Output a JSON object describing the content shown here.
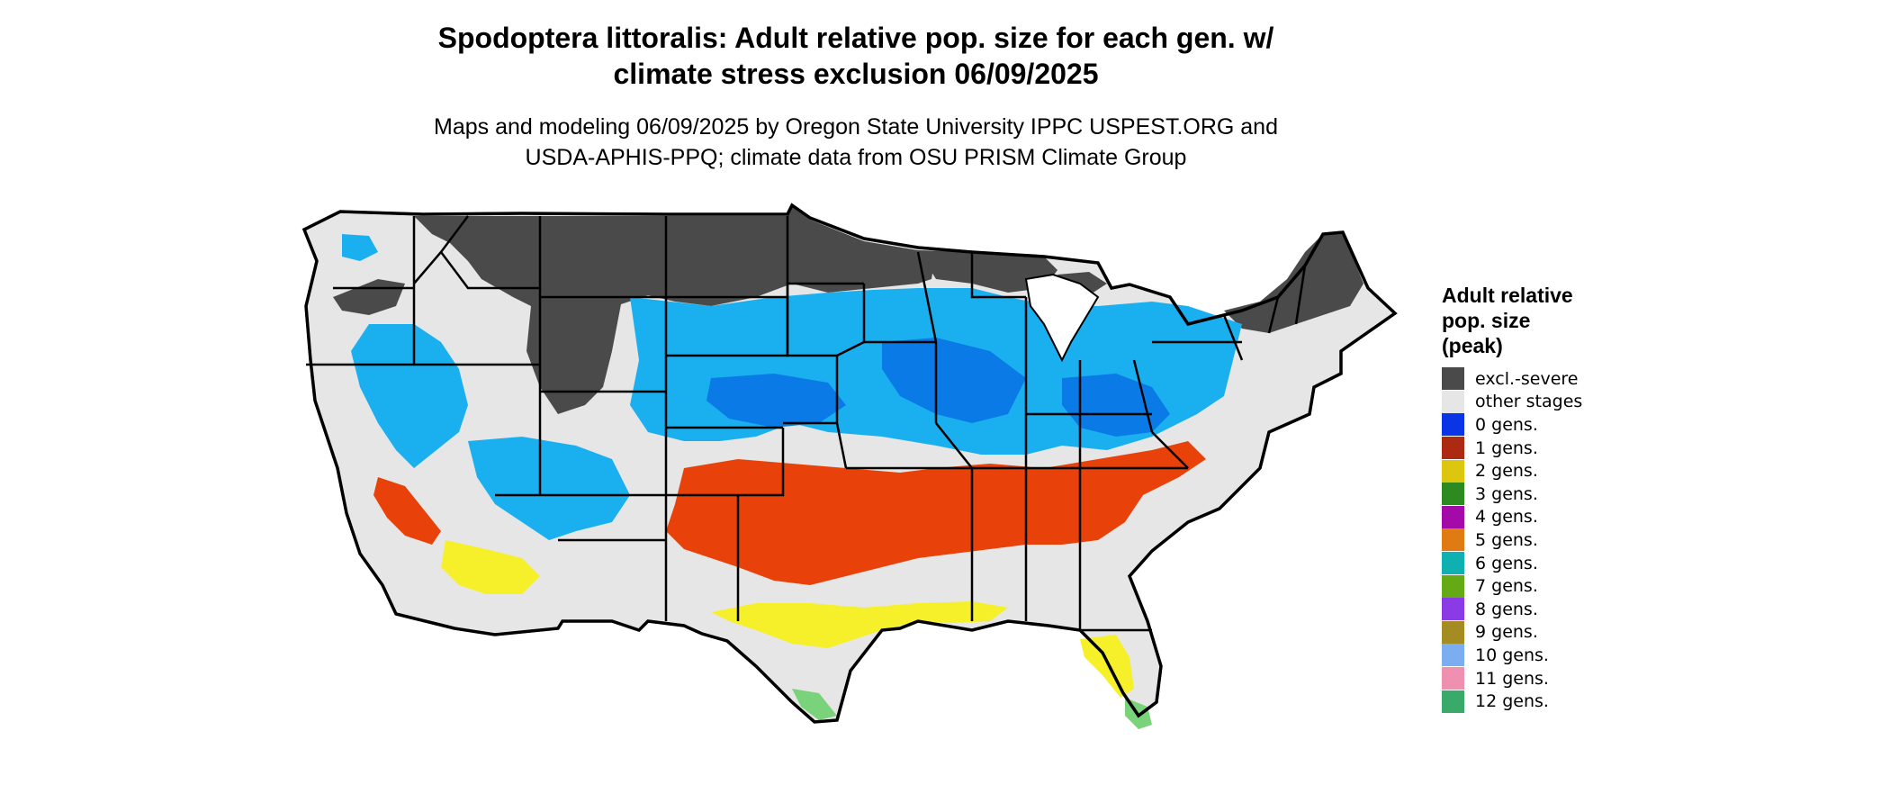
{
  "title": {
    "line1": "Spodoptera littoralis: Adult relative pop. size for each gen. w/",
    "line2": "climate stress exclusion 06/09/2025"
  },
  "subtitle": {
    "line1": "Maps and modeling 06/09/2025 by Oregon State University IPPC USPEST.ORG and",
    "line2": "USDA-APHIS-PPQ; climate data from OSU PRISM Climate Group"
  },
  "legend": {
    "title_lines": [
      "Adult relative",
      "pop. size",
      "(peak)"
    ],
    "items": [
      {
        "label": "excl.-severe",
        "color": "#4a4a4a"
      },
      {
        "label": "other stages",
        "color": "#e6e6e6"
      },
      {
        "label": "0 gens.",
        "color": "#0a35e6"
      },
      {
        "label": "1 gens.",
        "color": "#ad2a12"
      },
      {
        "label": "2 gens.",
        "color": "#dcc70e"
      },
      {
        "label": "3 gens.",
        "color": "#2d8a21"
      },
      {
        "label": "4 gens.",
        "color": "#a40aa8"
      },
      {
        "label": "5 gens.",
        "color": "#e07a12"
      },
      {
        "label": "6 gens.",
        "color": "#0fb0b0"
      },
      {
        "label": "7 gens.",
        "color": "#64aa14"
      },
      {
        "label": "8 gens.",
        "color": "#8a3be6"
      },
      {
        "label": "9 gens.",
        "color": "#a58c22"
      },
      {
        "label": "10 gens.",
        "color": "#7aaef0"
      },
      {
        "label": "11 gens.",
        "color": "#f090b0"
      },
      {
        "label": "12 gens.",
        "color": "#3aaa6a"
      }
    ]
  },
  "map_colors": {
    "excluded": "#4a4a4a",
    "other_stages": "#e6e6e6",
    "light_blue": "#1ab0f0",
    "mid_blue": "#0a7ae6",
    "red_orange": "#e8420a",
    "yellow": "#f5f02a",
    "green": "#7ad27a",
    "border": "#000000"
  }
}
